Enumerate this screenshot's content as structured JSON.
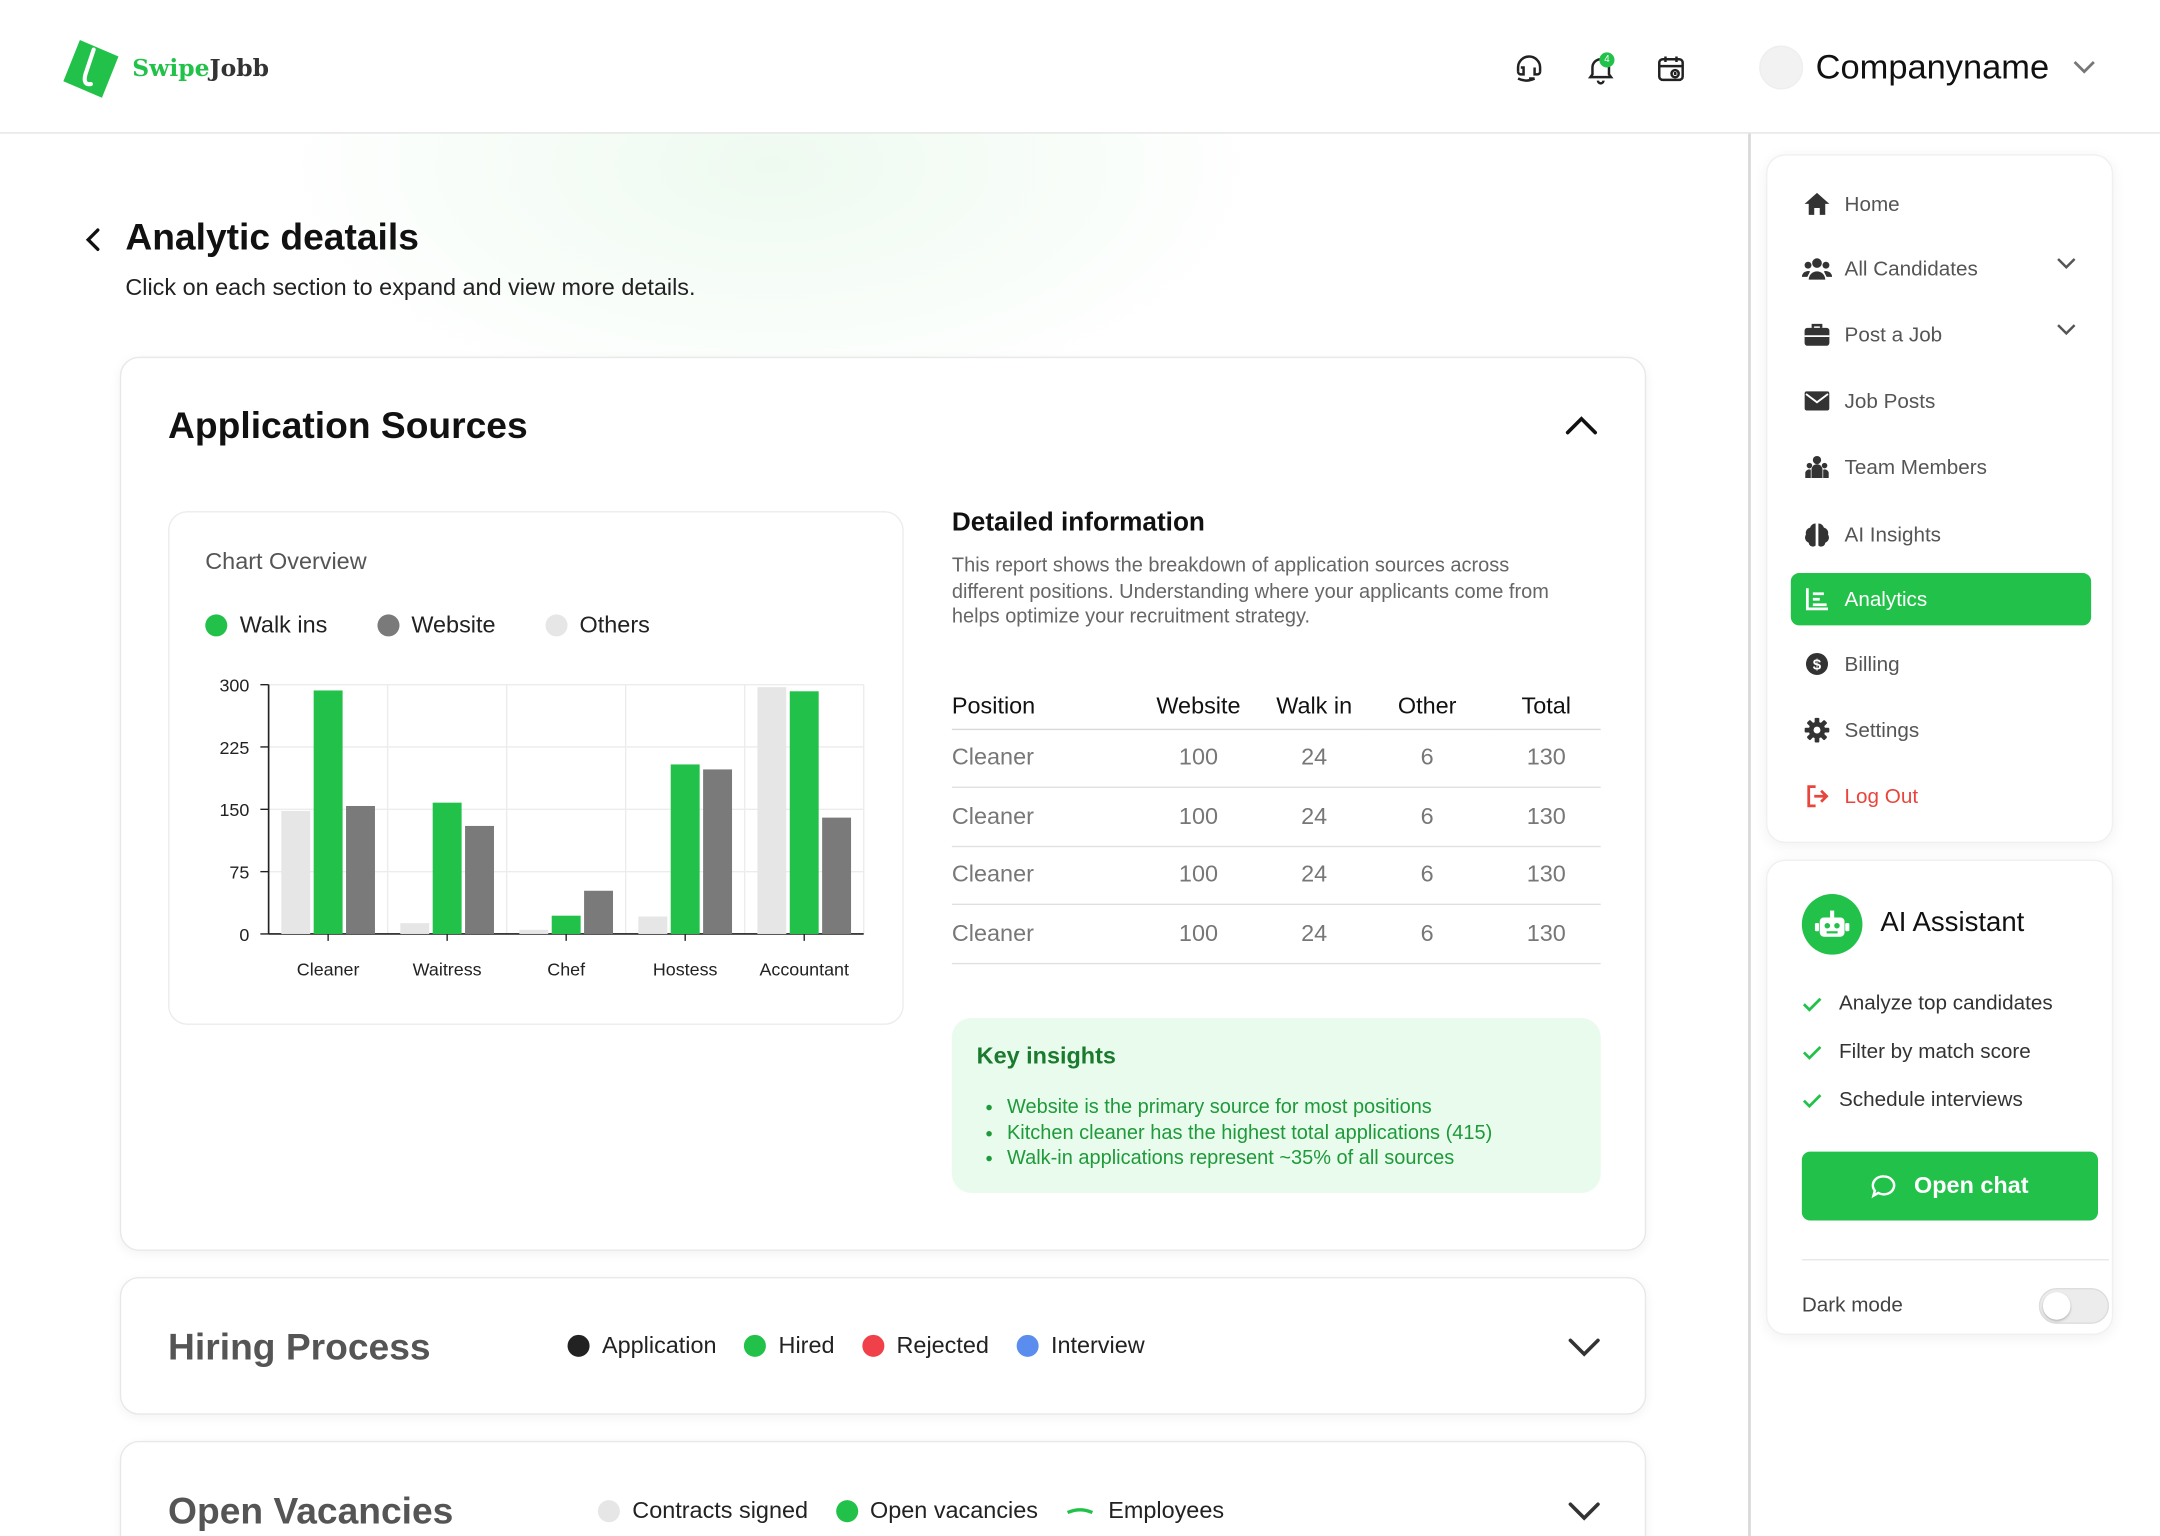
{
  "header": {
    "logo_part1": "Swipe",
    "logo_part2": "Jobb",
    "icons": [
      "support-icon",
      "bell-icon",
      "calendar-icon"
    ],
    "notification_count": "4",
    "company_name": "Companyname"
  },
  "page": {
    "title": "Analytic deatails",
    "subtitle": "Click on each section to expand and view more details."
  },
  "sections": {
    "application_sources": {
      "title": "Application Sources",
      "chart_box_title": "Chart Overview",
      "legend": [
        {
          "label": "Walk ins",
          "color": "#22c24a"
        },
        {
          "label": "Website",
          "color": "#7a7a7a"
        },
        {
          "label": "Others",
          "color": "#e6e6e6"
        }
      ],
      "detail_title": "Detailed information",
      "detail_text": "This report shows the breakdown of application sources across different positions. Understanding where your applicants come from helps optimize your recruitment strategy.",
      "table": {
        "headers": [
          "Position",
          "Website",
          "Walk in",
          "Other",
          "Total"
        ],
        "rows": [
          [
            "Cleaner",
            "100",
            "24",
            "6",
            "130"
          ],
          [
            "Cleaner",
            "100",
            "24",
            "6",
            "130"
          ],
          [
            "Cleaner",
            "100",
            "24",
            "6",
            "130"
          ],
          [
            "Cleaner",
            "100",
            "24",
            "6",
            "130"
          ]
        ]
      },
      "insights_title": "Key insights",
      "insights": [
        "Website is the primary source for most positions",
        "Kitchen cleaner has the highest total applications (415)",
        "Walk-in applications represent ~35% of all sources"
      ]
    },
    "hiring_process": {
      "title": "Hiring Process",
      "legend": [
        {
          "label": "Application",
          "color": "#222222"
        },
        {
          "label": "Hired",
          "color": "#22c24a"
        },
        {
          "label": "Rejected",
          "color": "#f0404a"
        },
        {
          "label": "Interview",
          "color": "#5b8def"
        }
      ]
    },
    "open_vacancies": {
      "title": "Open Vacancies",
      "legend": [
        {
          "label": "Contracts signed",
          "color": "#e6e6e6"
        },
        {
          "label": "Open vacancies",
          "color": "#22c24a"
        },
        {
          "label": "Employees",
          "color": "#22c24a"
        }
      ]
    }
  },
  "chart_data": {
    "type": "bar",
    "categories": [
      "Cleaner",
      "Waitress",
      "Chef",
      "Hostess",
      "Accountant"
    ],
    "series": [
      {
        "name": "Others",
        "color": "#e6e6e6",
        "values": [
          148,
          13,
          5,
          21,
          297
        ]
      },
      {
        "name": "Walk ins",
        "color": "#22c24a",
        "values": [
          293,
          158,
          22,
          204,
          292
        ]
      },
      {
        "name": "Website",
        "color": "#7a7a7a",
        "values": [
          154,
          130,
          52,
          198,
          140
        ]
      }
    ],
    "yticks": [
      0,
      75,
      150,
      225,
      300
    ],
    "ylim": [
      0,
      300
    ],
    "grid": true
  },
  "sidebar": {
    "items": [
      {
        "label": "Home",
        "icon": "home-icon"
      },
      {
        "label": "All Candidates",
        "icon": "users-icon"
      },
      {
        "label": "Post a Job",
        "icon": "briefcase-icon"
      },
      {
        "label": "Job Posts",
        "icon": "mail-icon"
      },
      {
        "label": "Team Members",
        "icon": "team-icon"
      },
      {
        "label": "AI Insights",
        "icon": "brain-icon"
      },
      {
        "label": "Analytics",
        "icon": "chart-icon"
      },
      {
        "label": "Billing",
        "icon": "dollar-icon"
      },
      {
        "label": "Settings",
        "icon": "gear-icon"
      },
      {
        "label": "Log Out",
        "icon": "logout-icon"
      }
    ],
    "active": "Analytics"
  },
  "ai_assistant": {
    "title": "AI Assistant",
    "features": [
      "Analyze top candidates",
      "Filter by match score",
      "Schedule interviews"
    ],
    "button": "Open chat",
    "dark_mode_label": "Dark mode"
  }
}
